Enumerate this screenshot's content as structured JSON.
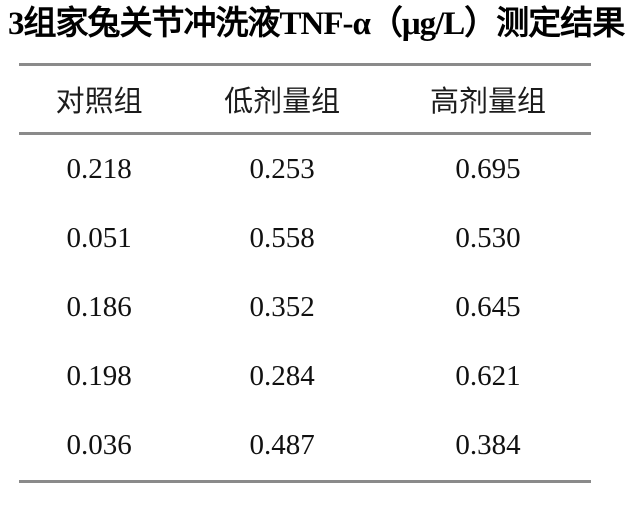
{
  "page": {
    "title": "3组家兔关节冲洗液TNF-α（μg/L）测定结果"
  },
  "table": {
    "columns": [
      "对照组",
      "低剂量组",
      "高剂量组"
    ],
    "rows": [
      [
        "0.218",
        "0.253",
        "0.695"
      ],
      [
        "0.051",
        "0.558",
        "0.530"
      ],
      [
        "0.186",
        "0.352",
        "0.645"
      ],
      [
        "0.198",
        "0.284",
        "0.621"
      ],
      [
        "0.036",
        "0.487",
        "0.384"
      ]
    ]
  },
  "chart_data": {
    "type": "table",
    "title": "3组家兔关节冲洗液TNF-α（μg/L）测定结果",
    "columns": [
      "对照组",
      "低剂量组",
      "高剂量组"
    ],
    "rows": [
      [
        0.218,
        0.253,
        0.695
      ],
      [
        0.051,
        0.558,
        0.53
      ],
      [
        0.186,
        0.352,
        0.645
      ],
      [
        0.198,
        0.284,
        0.621
      ],
      [
        0.036,
        0.487,
        0.384
      ]
    ],
    "units": "μg/L"
  },
  "colors": {
    "background": "#ffffff",
    "rule": "#8a8a8a",
    "title_text": "#000000",
    "body_text": "#111111"
  }
}
